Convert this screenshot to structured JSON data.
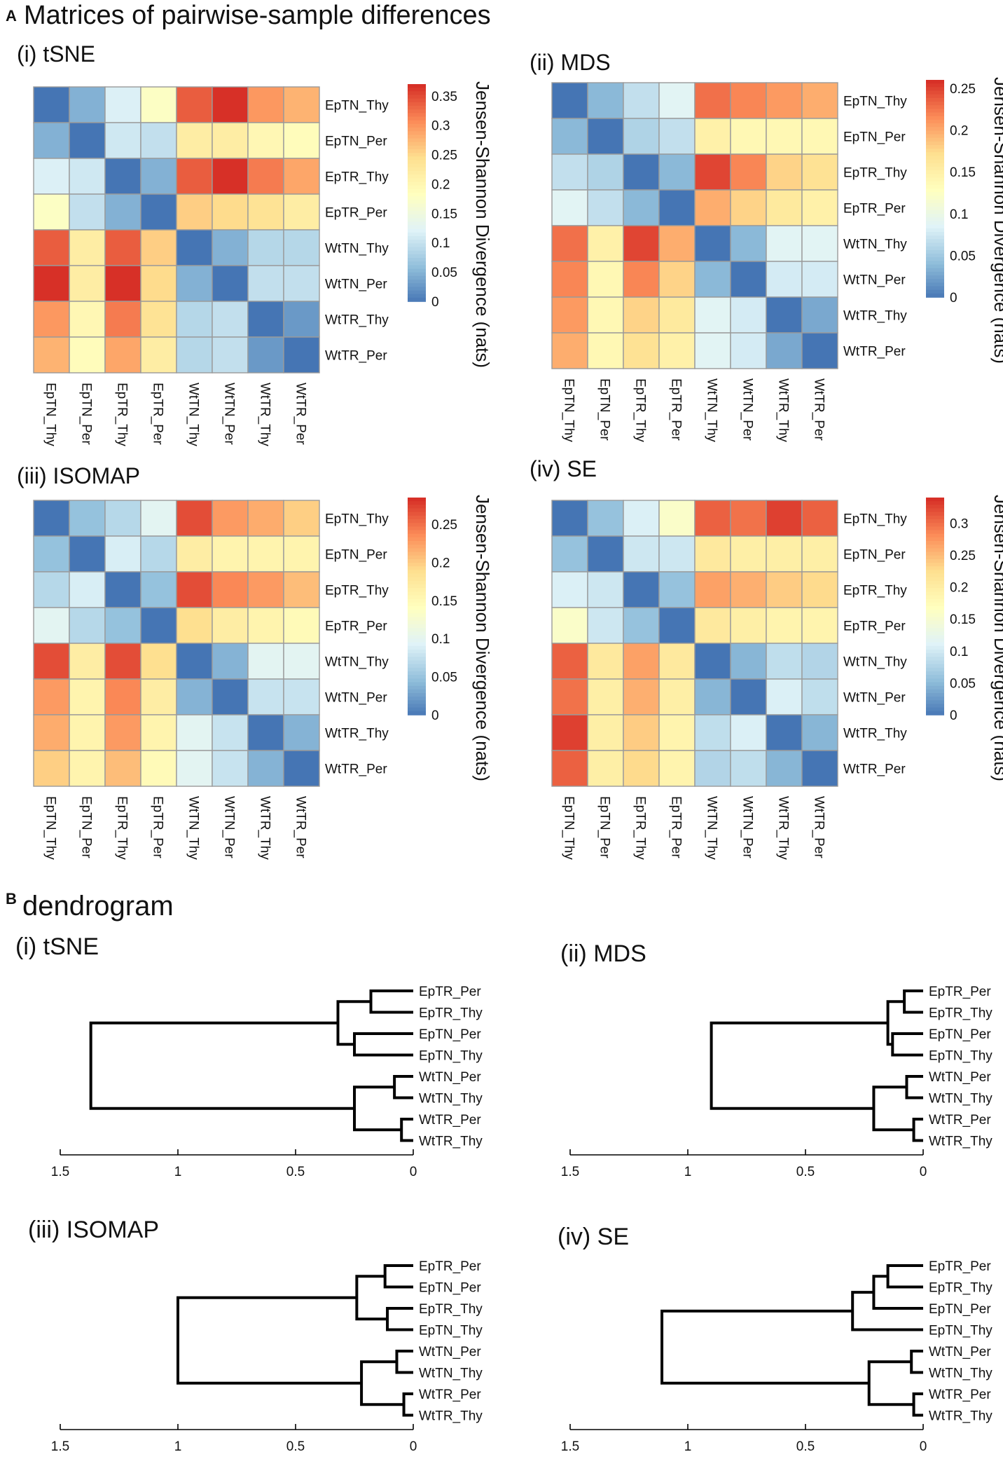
{
  "figure": {
    "panel_a_letter": "A",
    "panel_a_title": "Matrices of pairwise-sample differences",
    "panel_b_letter": "B",
    "panel_b_title": "dendrogram"
  },
  "colors": {
    "low": "#4575b4",
    "mid": "#ffffbf",
    "high": "#d73027",
    "cell_border": "#9a9a9a",
    "line": "#000000"
  },
  "chart_data": [
    {
      "type": "heatmap",
      "panel": "(i) tSNE",
      "title": "(i) tSNE",
      "row_labels": [
        "EpTN_Thy",
        "EpTN_Per",
        "EpTR_Thy",
        "EpTR_Per",
        "WtTN_Thy",
        "WtTN_Per",
        "WtTR_Thy",
        "WtTR_Per"
      ],
      "col_labels": [
        "EpTN_Thy",
        "EpTN_Per",
        "EpTR_Thy",
        "EpTR_Per",
        "WtTN_Thy",
        "WtTN_Per",
        "WtTR_Thy",
        "WtTR_Per"
      ],
      "values": [
        [
          0,
          0.05,
          0.12,
          0.18,
          0.34,
          0.37,
          0.3,
          0.28
        ],
        [
          0.05,
          0,
          0.11,
          0.1,
          0.22,
          0.22,
          0.2,
          0.19
        ],
        [
          0.12,
          0.11,
          0,
          0.05,
          0.34,
          0.37,
          0.32,
          0.29
        ],
        [
          0.18,
          0.1,
          0.05,
          0,
          0.26,
          0.25,
          0.24,
          0.22
        ],
        [
          0.34,
          0.22,
          0.34,
          0.26,
          0,
          0.05,
          0.09,
          0.09
        ],
        [
          0.37,
          0.22,
          0.37,
          0.25,
          0.05,
          0,
          0.1,
          0.1
        ],
        [
          0.3,
          0.2,
          0.32,
          0.24,
          0.09,
          0.1,
          0,
          0.03
        ],
        [
          0.28,
          0.19,
          0.29,
          0.22,
          0.09,
          0.1,
          0.03,
          0
        ]
      ],
      "colorbar_label": "Jensen-Shannon Divergence (nats)",
      "colorbar_ticks": [
        "0.35",
        "0.3",
        "0.25",
        "0.2",
        "0.15",
        "0.1",
        "0.05",
        "0"
      ],
      "colorbar_range": [
        0,
        0.37
      ]
    },
    {
      "type": "heatmap",
      "panel": "(ii) MDS",
      "title": "(ii) MDS",
      "row_labels": [
        "EpTN_Thy",
        "EpTN_Per",
        "EpTR_Thy",
        "EpTR_Per",
        "WtTN_Thy",
        "WtTN_Per",
        "WtTR_Thy",
        "WtTR_Per"
      ],
      "col_labels": [
        "EpTN_Thy",
        "EpTN_Per",
        "EpTR_Thy",
        "EpTR_Per",
        "WtTN_Thy",
        "WtTN_Per",
        "WtTR_Thy",
        "WtTR_Per"
      ],
      "values": [
        [
          0,
          0.04,
          0.07,
          0.09,
          0.23,
          0.22,
          0.21,
          0.2
        ],
        [
          0.04,
          0,
          0.06,
          0.07,
          0.15,
          0.14,
          0.14,
          0.14
        ],
        [
          0.07,
          0.06,
          0,
          0.04,
          0.25,
          0.22,
          0.18,
          0.17
        ],
        [
          0.09,
          0.07,
          0.04,
          0,
          0.2,
          0.18,
          0.16,
          0.15
        ],
        [
          0.23,
          0.15,
          0.25,
          0.2,
          0,
          0.04,
          0.09,
          0.09
        ],
        [
          0.22,
          0.14,
          0.22,
          0.18,
          0.04,
          0,
          0.08,
          0.08
        ],
        [
          0.21,
          0.14,
          0.18,
          0.16,
          0.09,
          0.08,
          0,
          0.03
        ],
        [
          0.2,
          0.14,
          0.17,
          0.15,
          0.09,
          0.08,
          0.03,
          0
        ]
      ],
      "colorbar_label": "Jensen-Shannon Divergence (nats)",
      "colorbar_ticks": [
        "0.25",
        "0.2",
        "0.15",
        "0.1",
        "0.05",
        "0"
      ],
      "colorbar_range": [
        0,
        0.26
      ]
    },
    {
      "type": "heatmap",
      "panel": "(iii) ISOMAP",
      "title": "(iii) ISOMAP",
      "row_labels": [
        "EpTN_Thy",
        "EpTN_Per",
        "EpTR_Thy",
        "EpTR_Per",
        "WtTN_Thy",
        "WtTN_Per",
        "WtTR_Thy",
        "WtTR_Per"
      ],
      "col_labels": [
        "EpTN_Thy",
        "EpTN_Per",
        "EpTR_Thy",
        "EpTR_Per",
        "WtTN_Thy",
        "WtTN_Per",
        "WtTR_Thy",
        "WtTR_Per"
      ],
      "values": [
        [
          0,
          0.05,
          0.07,
          0.1,
          0.27,
          0.23,
          0.22,
          0.2
        ],
        [
          0.05,
          0,
          0.09,
          0.07,
          0.17,
          0.16,
          0.16,
          0.16
        ],
        [
          0.07,
          0.09,
          0,
          0.05,
          0.27,
          0.24,
          0.23,
          0.21
        ],
        [
          0.1,
          0.07,
          0.05,
          0,
          0.19,
          0.17,
          0.16,
          0.15
        ],
        [
          0.27,
          0.17,
          0.27,
          0.19,
          0,
          0.04,
          0.1,
          0.1
        ],
        [
          0.23,
          0.16,
          0.24,
          0.17,
          0.04,
          0,
          0.08,
          0.08
        ],
        [
          0.22,
          0.16,
          0.23,
          0.16,
          0.1,
          0.08,
          0,
          0.04
        ],
        [
          0.2,
          0.16,
          0.21,
          0.15,
          0.1,
          0.08,
          0.04,
          0
        ]
      ],
      "colorbar_label": "Jensen-Shannon Divergence (nats)",
      "colorbar_ticks": [
        "0.25",
        "0.2",
        "0.15",
        "0.1",
        "0.05",
        "0"
      ],
      "colorbar_range": [
        0,
        0.285
      ]
    },
    {
      "type": "heatmap",
      "panel": "(iv) SE",
      "title": "(iv) SE",
      "row_labels": [
        "EpTN_Thy",
        "EpTN_Per",
        "EpTR_Thy",
        "EpTR_Per",
        "WtTN_Thy",
        "WtTN_Per",
        "WtTR_Thy",
        "WtTR_Per"
      ],
      "col_labels": [
        "EpTN_Thy",
        "EpTN_Per",
        "EpTR_Thy",
        "EpTR_Per",
        "WtTN_Thy",
        "WtTN_Per",
        "WtTR_Thy",
        "WtTR_Per"
      ],
      "values": [
        [
          0,
          0.06,
          0.11,
          0.16,
          0.31,
          0.3,
          0.33,
          0.31
        ],
        [
          0.06,
          0,
          0.1,
          0.1,
          0.21,
          0.2,
          0.2,
          0.2
        ],
        [
          0.11,
          0.1,
          0,
          0.06,
          0.27,
          0.26,
          0.24,
          0.23
        ],
        [
          0.16,
          0.1,
          0.06,
          0,
          0.21,
          0.2,
          0.19,
          0.19
        ],
        [
          0.31,
          0.21,
          0.27,
          0.21,
          0,
          0.05,
          0.09,
          0.08
        ],
        [
          0.3,
          0.2,
          0.26,
          0.2,
          0.05,
          0,
          0.11,
          0.09
        ],
        [
          0.33,
          0.2,
          0.24,
          0.19,
          0.09,
          0.11,
          0,
          0.05
        ],
        [
          0.31,
          0.2,
          0.23,
          0.19,
          0.08,
          0.09,
          0.05,
          0
        ]
      ],
      "colorbar_label": "Jensen-Shannon Divergence (nats)",
      "colorbar_ticks": [
        "0.3",
        "0.25",
        "0.2",
        "0.15",
        "0.1",
        "0.05",
        "0"
      ],
      "colorbar_range": [
        0,
        0.34
      ]
    },
    {
      "type": "dendrogram",
      "panel": "(i) tSNE",
      "title": "(i) tSNE",
      "leaves": [
        "EpTR_Per",
        "EpTR_Thy",
        "EpTN_Per",
        "EpTN_Thy",
        "WtTN_Per",
        "WtTN_Thy",
        "WtTR_Per",
        "WtTR_Thy"
      ],
      "merges": [
        [
          0,
          1,
          0.18
        ],
        [
          2,
          3,
          0.25
        ],
        [
          4,
          5,
          0.08
        ],
        [
          6,
          7,
          0.05
        ],
        [
          8,
          9,
          0.32
        ],
        [
          10,
          11,
          0.25
        ],
        [
          12,
          13,
          1.37
        ]
      ],
      "xticks": [
        "1.5",
        "1",
        "0.5",
        "0"
      ],
      "xrange": [
        1.5,
        0
      ]
    },
    {
      "type": "dendrogram",
      "panel": "(ii) MDS",
      "title": "(ii) MDS",
      "leaves": [
        "EpTR_Per",
        "EpTR_Thy",
        "EpTN_Per",
        "EpTN_Thy",
        "WtTN_Per",
        "WtTN_Thy",
        "WtTR_Per",
        "WtTR_Thy"
      ],
      "merges": [
        [
          0,
          1,
          0.08
        ],
        [
          2,
          3,
          0.13
        ],
        [
          4,
          5,
          0.07
        ],
        [
          6,
          7,
          0.04
        ],
        [
          8,
          9,
          0.15
        ],
        [
          10,
          11,
          0.21
        ],
        [
          12,
          13,
          0.9
        ]
      ],
      "xticks": [
        "1.5",
        "1",
        "0.5",
        "0"
      ],
      "xrange": [
        1.5,
        0
      ]
    },
    {
      "type": "dendrogram",
      "panel": "(iii) ISOMAP",
      "title": "(iii) ISOMAP",
      "leaves": [
        "EpTR_Per",
        "EpTN_Per",
        "EpTR_Thy",
        "EpTN_Thy",
        "WtTN_Per",
        "WtTN_Thy",
        "WtTR_Per",
        "WtTR_Thy"
      ],
      "merges": [
        [
          0,
          1,
          0.12
        ],
        [
          2,
          3,
          0.11
        ],
        [
          4,
          5,
          0.07
        ],
        [
          6,
          7,
          0.04
        ],
        [
          8,
          9,
          0.24
        ],
        [
          10,
          11,
          0.22
        ],
        [
          12,
          13,
          1.0
        ]
      ],
      "xticks": [
        "1.5",
        "1",
        "0.5",
        "0"
      ],
      "xrange": [
        1.5,
        0
      ]
    },
    {
      "type": "dendrogram",
      "panel": "(iv) SE",
      "title": "(iv) SE",
      "leaves": [
        "EpTR_Per",
        "EpTR_Thy",
        "EpTN_Per",
        "EpTN_Thy",
        "WtTN_Per",
        "WtTN_Thy",
        "WtTR_Per",
        "WtTR_Thy"
      ],
      "merges": [
        [
          0,
          1,
          0.15
        ],
        [
          8,
          2,
          0.21
        ],
        [
          9,
          3,
          0.3
        ],
        [
          4,
          5,
          0.05
        ],
        [
          6,
          7,
          0.04
        ],
        [
          11,
          12,
          0.23
        ],
        [
          10,
          13,
          1.11
        ]
      ],
      "xticks": [
        "1.5",
        "1",
        "0.5",
        "0"
      ],
      "xrange": [
        1.5,
        0
      ]
    }
  ]
}
